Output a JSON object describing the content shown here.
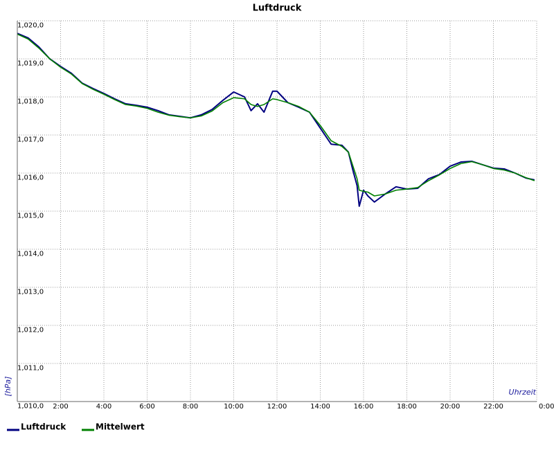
{
  "chart_data": {
    "type": "line",
    "title": "Luftdruck",
    "y_label": "[hPa]",
    "x_label": "Uhrzeit",
    "grid": true,
    "legend": "bottom-left",
    "xlim": [
      0,
      24
    ],
    "ylim": [
      1010,
      1020
    ],
    "xticks": [
      {
        "value": 2,
        "label": "2:00"
      },
      {
        "value": 4,
        "label": "4:00"
      },
      {
        "value": 6,
        "label": "6:00"
      },
      {
        "value": 8,
        "label": "8:00"
      },
      {
        "value": 10,
        "label": "10:00"
      },
      {
        "value": 12,
        "label": "12:00"
      },
      {
        "value": 14,
        "label": "14:00"
      },
      {
        "value": 16,
        "label": "16:00"
      },
      {
        "value": 18,
        "label": "18:00"
      },
      {
        "value": 20,
        "label": "20:00"
      },
      {
        "value": 22,
        "label": "22:00"
      },
      {
        "value": 24,
        "label": "0:00"
      }
    ],
    "yticks": [
      {
        "value": 1010,
        "label": "1,010,0"
      },
      {
        "value": 1011,
        "label": "1,011,0"
      },
      {
        "value": 1012,
        "label": "1,012,0"
      },
      {
        "value": 1013,
        "label": "1,013,0"
      },
      {
        "value": 1014,
        "label": "1,014,0"
      },
      {
        "value": 1015,
        "label": "1,015,0"
      },
      {
        "value": 1016,
        "label": "1,016,0"
      },
      {
        "value": 1017,
        "label": "1,017,0"
      },
      {
        "value": 1018,
        "label": "1,018,0"
      },
      {
        "value": 1019,
        "label": "1,019,0"
      },
      {
        "value": 1020,
        "label": "1,020,0"
      }
    ],
    "x": [
      0,
      0.5,
      1,
      1.5,
      2,
      2.5,
      3,
      3.5,
      4,
      4.5,
      5,
      5.5,
      6,
      6.5,
      7,
      7.5,
      8,
      8.5,
      9,
      9.5,
      10,
      10.5,
      10.8,
      11.1,
      11.4,
      11.8,
      12,
      12.5,
      13,
      13.5,
      14,
      14.5,
      15,
      15.3,
      15.5,
      15.7,
      15.8,
      16,
      16.2,
      16.5,
      17,
      17.5,
      18,
      18.5,
      19,
      19.5,
      20,
      20.5,
      21,
      21.5,
      22,
      22.5,
      23,
      23.5,
      23.9
    ],
    "series": [
      {
        "name": "Luftdruck",
        "color": "#000080",
        "values": [
          1019.67,
          1019.55,
          1019.31,
          1019.0,
          1018.8,
          1018.62,
          1018.36,
          1018.22,
          1018.09,
          1017.95,
          1017.82,
          1017.78,
          1017.73,
          1017.64,
          1017.53,
          1017.49,
          1017.45,
          1017.53,
          1017.67,
          1017.91,
          1018.13,
          1018.0,
          1017.64,
          1017.82,
          1017.6,
          1018.15,
          1018.15,
          1017.85,
          1017.73,
          1017.6,
          1017.18,
          1016.76,
          1016.73,
          1016.55,
          1016.09,
          1015.67,
          1015.13,
          1015.55,
          1015.4,
          1015.24,
          1015.45,
          1015.64,
          1015.58,
          1015.6,
          1015.85,
          1015.96,
          1016.18,
          1016.29,
          1016.31,
          1016.22,
          1016.13,
          1016.11,
          1016.0,
          1015.87,
          1015.82
        ]
      },
      {
        "name": "Mittelwert",
        "color": "#008000",
        "values": [
          1019.65,
          1019.52,
          1019.28,
          1019.0,
          1018.78,
          1018.6,
          1018.35,
          1018.2,
          1018.07,
          1017.93,
          1017.8,
          1017.76,
          1017.7,
          1017.6,
          1017.52,
          1017.48,
          1017.45,
          1017.5,
          1017.63,
          1017.85,
          1017.98,
          1017.95,
          1017.8,
          1017.75,
          1017.8,
          1017.95,
          1017.93,
          1017.85,
          1017.75,
          1017.6,
          1017.25,
          1016.85,
          1016.7,
          1016.55,
          1016.2,
          1015.85,
          1015.55,
          1015.52,
          1015.5,
          1015.4,
          1015.45,
          1015.55,
          1015.58,
          1015.62,
          1015.8,
          1015.95,
          1016.12,
          1016.25,
          1016.3,
          1016.22,
          1016.12,
          1016.08,
          1016.0,
          1015.88,
          1015.8
        ]
      }
    ]
  }
}
